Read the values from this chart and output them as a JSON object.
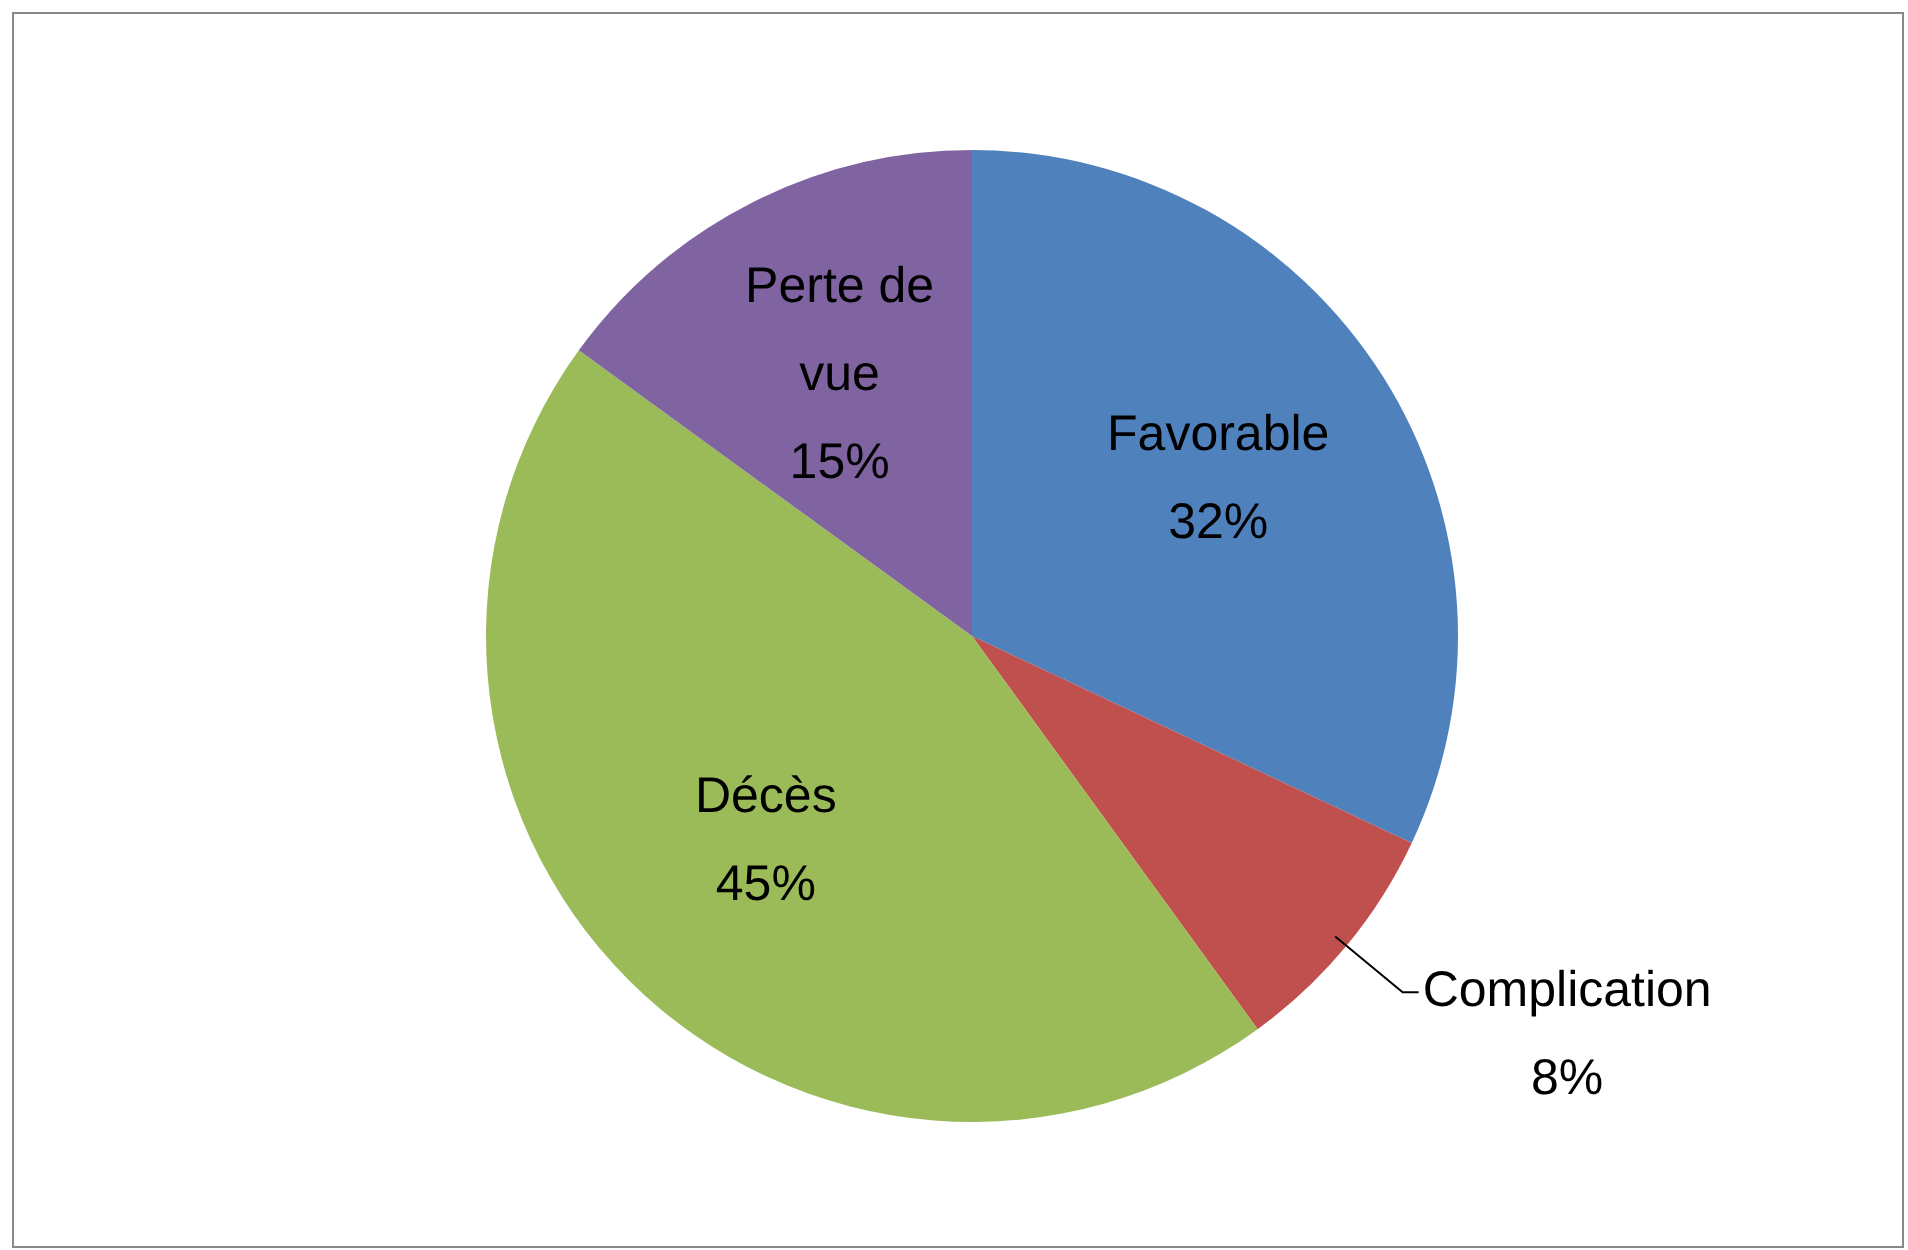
{
  "chart_data": {
    "type": "pie",
    "categories": [
      "Favorable",
      "Complication",
      "Décès",
      "Perte de vue"
    ],
    "values": [
      32,
      8,
      45,
      15
    ],
    "colors": [
      "#4f81bd",
      "#c0504d",
      "#9bbb59",
      "#8064a2"
    ],
    "value_labels": [
      "32%",
      "8%",
      "45%",
      "15%"
    ],
    "legend": false
  }
}
